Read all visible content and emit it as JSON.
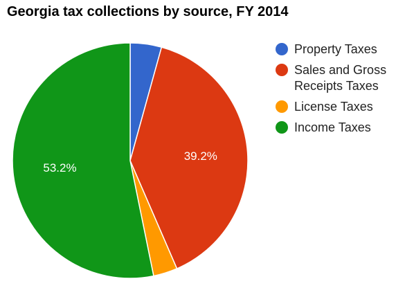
{
  "chart_data": {
    "type": "pie",
    "title": "Georgia tax collections by source, FY 2014",
    "legend_position": "right",
    "slices": [
      {
        "name": "Property Taxes",
        "value": 4.3,
        "color": "#3366cc",
        "label": ""
      },
      {
        "name": "Sales and Gross Receipts Taxes",
        "value": 39.2,
        "color": "#dc3912",
        "label": "39.2%"
      },
      {
        "name": "License Taxes",
        "value": 3.3,
        "color": "#ff9900",
        "label": ""
      },
      {
        "name": "Income Taxes",
        "value": 53.2,
        "color": "#109618",
        "label": "53.2%"
      }
    ]
  }
}
